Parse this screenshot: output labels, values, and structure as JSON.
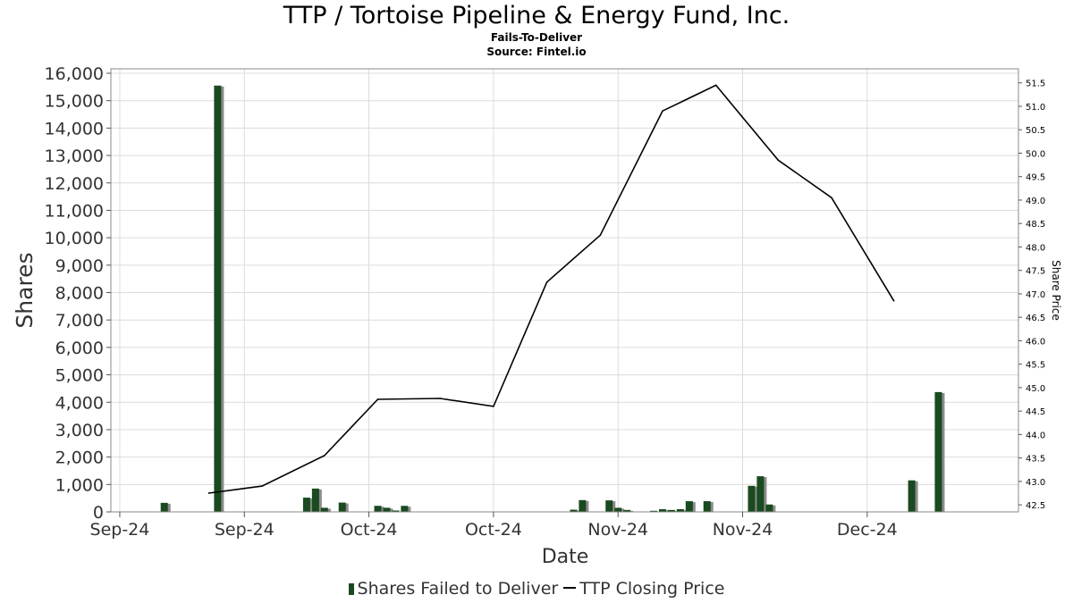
{
  "header": {
    "title": "TTP / Tortoise Pipeline & Energy Fund, Inc.",
    "subtitle": "Fails-To-Deliver",
    "source": "Source: Fintel.io"
  },
  "legend": {
    "bars": "Shares Failed to Deliver",
    "line": "TTP Closing Price"
  },
  "colors": {
    "bar": "#1a4a1f",
    "bar_shadow": "#8c8c8c",
    "line": "#000000",
    "grid": "#dcdcdc"
  },
  "chart_data": {
    "type": "bar",
    "title": "TTP / Tortoise Pipeline & Energy Fund, Inc.",
    "subtitle": "Fails-To-Deliver",
    "xlabel": "Date",
    "ylabel": "Shares",
    "y2label": "Share Price",
    "ylim": [
      0,
      16000
    ],
    "y2lim": [
      42.35,
      51.8
    ],
    "y_ticks": [
      0,
      1000,
      2000,
      3000,
      4000,
      5000,
      6000,
      7000,
      8000,
      9000,
      10000,
      11000,
      12000,
      13000,
      14000,
      15000,
      16000
    ],
    "y_tick_labels": [
      "0",
      "1,000",
      "2,000",
      "3,000",
      "4,000",
      "5,000",
      "6,000",
      "7,000",
      "8,000",
      "9,000",
      "10,000",
      "11,000",
      "12,000",
      "13,000",
      "14,000",
      "15,000",
      "16,000"
    ],
    "y2_ticks": [
      42.5,
      43.0,
      43.5,
      44.0,
      44.5,
      45.0,
      45.5,
      46.0,
      46.5,
      47.0,
      47.5,
      48.0,
      48.5,
      49.0,
      49.5,
      50.0,
      50.5,
      51.0,
      51.5
    ],
    "y2_tick_labels": [
      "42.5",
      "43.0",
      "43.5",
      "44.0",
      "44.5",
      "45.0",
      "45.5",
      "46.0",
      "46.5",
      "47.0",
      "47.5",
      "48.0",
      "48.5",
      "49.0",
      "49.5",
      "50.0",
      "50.5",
      "51.0",
      "51.5"
    ],
    "x_tick_labels": [
      "Sep-24",
      "Sep-24",
      "Oct-24",
      "Oct-24",
      "Nov-24",
      "Nov-24",
      "Dec-24"
    ],
    "x_ticks": [
      "2024-09-01",
      "2024-09-15",
      "2024-09-29",
      "2024-10-13",
      "2024-10-27",
      "2024-11-10",
      "2024-11-24"
    ],
    "x_range": [
      "2024-08-31",
      "2024-12-11"
    ],
    "grid": true,
    "legend_position": "bottom",
    "series": [
      {
        "name": "Shares Failed to Deliver",
        "type": "bar",
        "x": [
          "2024-09-06",
          "2024-09-12",
          "2024-09-22",
          "2024-09-23",
          "2024-09-24",
          "2024-09-26",
          "2024-09-30",
          "2024-10-01",
          "2024-10-02",
          "2024-10-03",
          "2024-10-22",
          "2024-10-23",
          "2024-10-26",
          "2024-10-27",
          "2024-10-28",
          "2024-10-31",
          "2024-11-01",
          "2024-11-02",
          "2024-11-03",
          "2024-11-04",
          "2024-11-06",
          "2024-11-11",
          "2024-11-12",
          "2024-11-13",
          "2024-11-29",
          "2024-12-02"
        ],
        "values": [
          330,
          15550,
          520,
          850,
          150,
          340,
          220,
          150,
          50,
          220,
          80,
          430,
          420,
          150,
          70,
          40,
          100,
          70,
          100,
          390,
          390,
          950,
          1300,
          270,
          1150,
          4370
        ]
      },
      {
        "name": "TTP Closing Price",
        "type": "line",
        "x": [
          "2024-09-11",
          "2024-09-17",
          "2024-09-24",
          "2024-09-30",
          "2024-10-07",
          "2024-10-13",
          "2024-10-19",
          "2024-10-25",
          "2024-11-01",
          "2024-11-07",
          "2024-11-14",
          "2024-11-20",
          "2024-11-27"
        ],
        "values": [
          42.75,
          42.9,
          43.55,
          44.75,
          44.77,
          44.6,
          47.25,
          48.25,
          50.9,
          51.45,
          49.85,
          49.05,
          46.85
        ]
      }
    ]
  }
}
